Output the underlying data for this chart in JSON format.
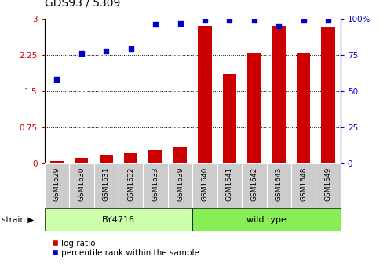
{
  "title": "GDS93 / 5309",
  "samples": [
    "GSM1629",
    "GSM1630",
    "GSM1631",
    "GSM1632",
    "GSM1633",
    "GSM1639",
    "GSM1640",
    "GSM1641",
    "GSM1642",
    "GSM1643",
    "GSM1648",
    "GSM1649"
  ],
  "log_ratio": [
    0.05,
    0.12,
    0.18,
    0.22,
    0.28,
    0.35,
    2.85,
    1.85,
    2.28,
    2.85,
    2.3,
    2.82
  ],
  "percentile_rank": [
    1.75,
    2.27,
    2.32,
    2.37,
    2.88,
    2.9,
    2.97,
    2.97,
    2.97,
    2.85,
    2.97,
    2.97
  ],
  "by4716_count": 6,
  "bar_color": "#cc0000",
  "dot_color": "#0000cc",
  "left_yticks": [
    0,
    0.75,
    1.5,
    2.25,
    3.0
  ],
  "left_ylabels": [
    "0",
    "0.75",
    "1.5",
    "2.25",
    "3"
  ],
  "right_yticks": [
    0,
    0.75,
    1.5,
    2.25,
    3.0
  ],
  "right_ylabels": [
    "0",
    "25",
    "50",
    "75",
    "100%"
  ],
  "ylim": [
    0,
    3.0
  ],
  "strain_label_by4716": "BY4716",
  "strain_label_wt": "wild type",
  "legend_bar": "log ratio",
  "legend_dot": "percentile rank within the sample",
  "strain_label": "strain",
  "bg_color_by4716": "#ccffaa",
  "bg_color_wt": "#88ee55",
  "tick_area_color": "#cccccc"
}
